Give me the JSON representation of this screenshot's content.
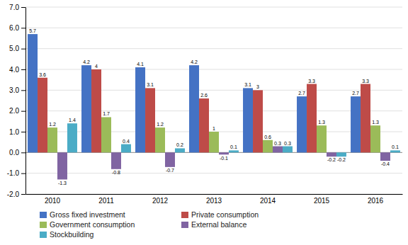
{
  "chart_data": {
    "type": "bar",
    "categories": [
      "2010",
      "2011",
      "2012",
      "2013",
      "2014",
      "2015",
      "2016"
    ],
    "series": [
      {
        "name": "Gross fixed investment",
        "color": "#4472C4",
        "values": [
          5.7,
          4.2,
          4.1,
          4.2,
          3.1,
          2.7,
          2.7
        ]
      },
      {
        "name": "Private consumption",
        "color": "#BE4B48",
        "values": [
          3.6,
          4.0,
          3.1,
          2.6,
          3.0,
          3.3,
          3.3
        ]
      },
      {
        "name": "Government consumption",
        "color": "#9BBB59",
        "values": [
          1.2,
          1.7,
          1.2,
          1.0,
          0.6,
          1.3,
          1.3
        ]
      },
      {
        "name": "External balance",
        "color": "#8064A2",
        "values": [
          -1.3,
          -0.8,
          -0.7,
          -0.1,
          0.3,
          -0.2,
          -0.4
        ]
      },
      {
        "name": "Stockbuilding",
        "color": "#4BACC6",
        "values": [
          1.4,
          0.4,
          0.2,
          0.1,
          0.3,
          -0.2,
          0.1
        ]
      }
    ],
    "ylim": [
      -2.0,
      7.0
    ],
    "yticks": [
      {
        "value": -2,
        "label": "-2.0"
      },
      {
        "value": -1,
        "label": "-1.0"
      },
      {
        "value": 0,
        "label": "0.0"
      },
      {
        "value": 1,
        "label": "1.0"
      },
      {
        "value": 2,
        "label": "2.0"
      },
      {
        "value": 3,
        "label": "3.0"
      },
      {
        "value": 4,
        "label": "4.0"
      },
      {
        "value": 5,
        "label": "5.0"
      },
      {
        "value": 6,
        "label": "6.0"
      },
      {
        "value": 7,
        "label": "7.0"
      }
    ],
    "grid": true,
    "data_labels": true,
    "legend": "bottom"
  }
}
